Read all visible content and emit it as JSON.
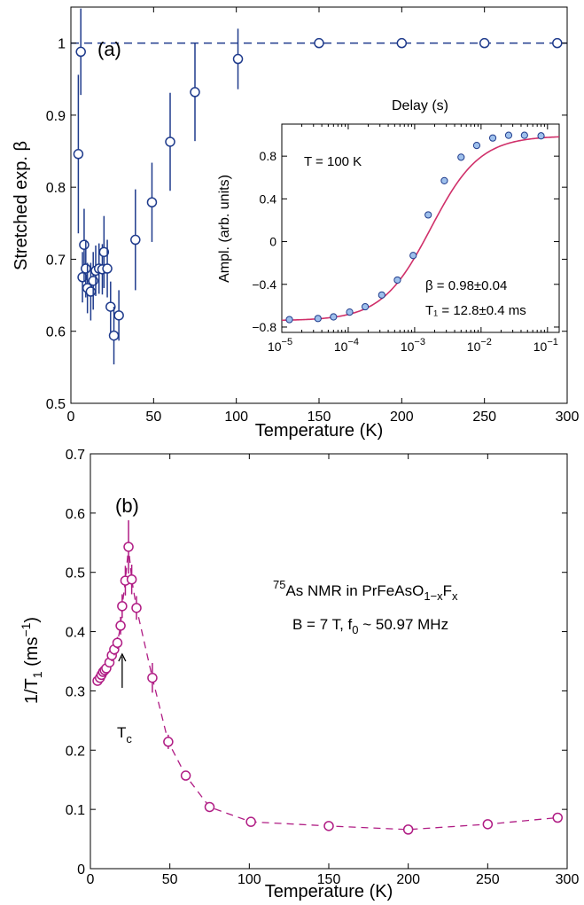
{
  "chart_data": [
    {
      "panel": "(a)",
      "type": "scatter",
      "xlabel": "Temperature (K)",
      "ylabel": "Stretched exp. β",
      "xlim": [
        0,
        300
      ],
      "ylim": [
        0.5,
        1.05
      ],
      "xticks": [
        0,
        50,
        100,
        150,
        200,
        250,
        300
      ],
      "yticks": [
        0.5,
        0.6,
        0.7,
        0.8,
        0.9,
        1
      ],
      "colors": {
        "marker": "#1f3b8c",
        "errorbar": "#1f3b8c",
        "reference": "#1f3b8c"
      },
      "reference_line": {
        "y": 1,
        "style": "dashed"
      },
      "points": [
        {
          "x": 4.5,
          "y": 0.846,
          "err": 0.11
        },
        {
          "x": 6,
          "y": 0.988,
          "err": 0.06
        },
        {
          "x": 7,
          "y": 0.675,
          "err": 0.035
        },
        {
          "x": 8,
          "y": 0.72,
          "err": 0.05
        },
        {
          "x": 9,
          "y": 0.687,
          "err": 0.04
        },
        {
          "x": 10,
          "y": 0.66,
          "err": 0.035
        },
        {
          "x": 12,
          "y": 0.655,
          "err": 0.04
        },
        {
          "x": 13.5,
          "y": 0.67,
          "err": 0.04
        },
        {
          "x": 15,
          "y": 0.684,
          "err": 0.035
        },
        {
          "x": 17,
          "y": 0.687,
          "err": 0.035
        },
        {
          "x": 19,
          "y": 0.686,
          "err": 0.035
        },
        {
          "x": 20,
          "y": 0.71,
          "err": 0.05
        },
        {
          "x": 22,
          "y": 0.687,
          "err": 0.04
        },
        {
          "x": 24,
          "y": 0.634,
          "err": 0.035
        },
        {
          "x": 26,
          "y": 0.594,
          "err": 0.04
        },
        {
          "x": 29,
          "y": 0.622,
          "err": 0.035
        },
        {
          "x": 39,
          "y": 0.727,
          "err": 0.07
        },
        {
          "x": 49,
          "y": 0.779,
          "err": 0.055
        },
        {
          "x": 60,
          "y": 0.863,
          "err": 0.068
        },
        {
          "x": 75,
          "y": 0.932,
          "err": 0.068
        },
        {
          "x": 101,
          "y": 0.978,
          "err": 0.042
        },
        {
          "x": 150,
          "y": 1,
          "err": 0
        },
        {
          "x": 200,
          "y": 1,
          "err": 0
        },
        {
          "x": 250,
          "y": 1,
          "err": 0
        },
        {
          "x": 294,
          "y": 1,
          "err": 0
        }
      ]
    },
    {
      "panel": "inset",
      "type": "line",
      "title": "Delay (s)",
      "ylabel": "Ampl. (arb. units)",
      "xscale": "log",
      "xlim": [
        1e-05,
        0.15
      ],
      "ylim": [
        -0.85,
        1.1
      ],
      "xtick_exponents": [
        -5,
        -4,
        -3,
        -2,
        -1
      ],
      "yticks": [
        -0.8,
        -0.4,
        0,
        0.4,
        0.8
      ],
      "annotations": {
        "temp": "T = 100 K",
        "beta": "β = 0.98±0.04",
        "t1": "T₁ = 12.8±0.4 ms"
      },
      "colors": {
        "fit_line": "#d0306a",
        "marker_fill": "#9ec0ec",
        "marker_edge": "#1f3b8c"
      },
      "fit": {
        "A": -0.74,
        "B": 0.99,
        "T1_s": 0.0128,
        "beta": 0.98,
        "model": "inversion recovery"
      },
      "points": [
        {
          "x": 1.3e-05,
          "y": -0.73
        },
        {
          "x": 3.5e-05,
          "y": -0.72
        },
        {
          "x": 6e-05,
          "y": -0.705
        },
        {
          "x": 0.000105,
          "y": -0.66
        },
        {
          "x": 0.00018,
          "y": -0.61
        },
        {
          "x": 0.00032,
          "y": -0.5
        },
        {
          "x": 0.00055,
          "y": -0.36
        },
        {
          "x": 0.00095,
          "y": -0.13
        },
        {
          "x": 0.0016,
          "y": 0.25
        },
        {
          "x": 0.0028,
          "y": 0.57
        },
        {
          "x": 0.005,
          "y": 0.79
        },
        {
          "x": 0.0086,
          "y": 0.9
        },
        {
          "x": 0.015,
          "y": 0.97
        },
        {
          "x": 0.026,
          "y": 0.995
        },
        {
          "x": 0.045,
          "y": 0.995
        },
        {
          "x": 0.08,
          "y": 0.99
        }
      ]
    },
    {
      "panel": "(b)",
      "type": "line",
      "xlabel": "Temperature (K)",
      "ylabel": "1/T₁ (ms⁻¹)",
      "xlim": [
        0,
        300
      ],
      "ylim": [
        0,
        0.7
      ],
      "xticks": [
        0,
        50,
        100,
        150,
        200,
        250,
        300
      ],
      "yticks": [
        0,
        0.1,
        0.2,
        0.3,
        0.4,
        0.5,
        0.6,
        0.7
      ],
      "annotations": {
        "line1_prefix": "75",
        "line1_text": "As NMR in PrFeAsO",
        "line1_sub": "1−x",
        "line1_tail": "F",
        "line1_tail_sub": "x",
        "line2_a": "B = 7 T, f",
        "line2_sub": "0",
        "line2_b": " ~ 50.97 MHz",
        "tc_main": "T",
        "tc_sub": "c",
        "tc_arrow_x": 20
      },
      "colors": {
        "marker": "#b01c84",
        "line": "#b01c84"
      },
      "points": [
        {
          "x": 4.5,
          "y": 0.317,
          "err": 0.008
        },
        {
          "x": 6,
          "y": 0.322,
          "err": 0.008
        },
        {
          "x": 7,
          "y": 0.327,
          "err": 0.008
        },
        {
          "x": 8,
          "y": 0.332,
          "err": 0.008
        },
        {
          "x": 9,
          "y": 0.335,
          "err": 0.008
        },
        {
          "x": 10,
          "y": 0.338,
          "err": 0.008
        },
        {
          "x": 12,
          "y": 0.348,
          "err": 0.008
        },
        {
          "x": 13.5,
          "y": 0.36,
          "err": 0.01
        },
        {
          "x": 15,
          "y": 0.37,
          "err": 0.01
        },
        {
          "x": 17,
          "y": 0.381,
          "err": 0.01
        },
        {
          "x": 19,
          "y": 0.41,
          "err": 0.015
        },
        {
          "x": 20,
          "y": 0.443,
          "err": 0.02
        },
        {
          "x": 22,
          "y": 0.486,
          "err": 0.025
        },
        {
          "x": 24,
          "y": 0.543,
          "err": 0.045
        },
        {
          "x": 26,
          "y": 0.488,
          "err": 0.025
        },
        {
          "x": 29,
          "y": 0.44,
          "err": 0.02
        },
        {
          "x": 39,
          "y": 0.322,
          "err": 0.025
        },
        {
          "x": 49,
          "y": 0.214,
          "err": 0.012
        },
        {
          "x": 60,
          "y": 0.157,
          "err": 0.008
        },
        {
          "x": 75,
          "y": 0.104,
          "err": 0.005
        },
        {
          "x": 101,
          "y": 0.079,
          "err": 0.003
        },
        {
          "x": 150,
          "y": 0.072,
          "err": 0.003
        },
        {
          "x": 200,
          "y": 0.066,
          "err": 0.003
        },
        {
          "x": 250,
          "y": 0.075,
          "err": 0.003
        },
        {
          "x": 294,
          "y": 0.086,
          "err": 0.003
        }
      ]
    }
  ]
}
